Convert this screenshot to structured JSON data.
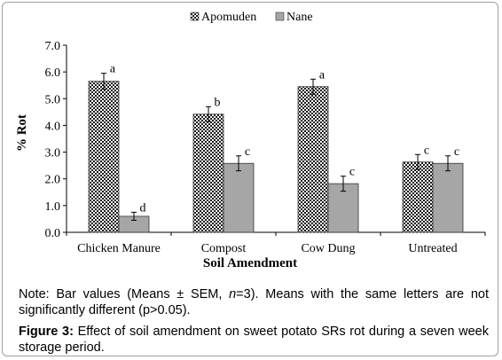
{
  "chart_data": {
    "type": "bar",
    "xlabel": "Soil Amendment",
    "ylabel": "% Rot",
    "ylim": [
      0,
      7
    ],
    "yticks": [
      "0.0",
      "1.0",
      "2.0",
      "3.0",
      "4.0",
      "5.0",
      "6.0",
      "7.0"
    ],
    "grid": false,
    "legend_position": "top-center",
    "categories": [
      "Chicken Manure",
      "Compost",
      "Cow Dung",
      "Untreated"
    ],
    "series": [
      {
        "name": "Apomuden",
        "values": [
          5.65,
          4.42,
          5.45,
          2.63
        ],
        "errors": [
          0.3,
          0.28,
          0.28,
          0.28
        ],
        "letters": [
          "a",
          "b",
          "a",
          "c"
        ],
        "pattern": "checkered",
        "color": "#1a1a1a"
      },
      {
        "name": "Nane",
        "values": [
          0.6,
          2.58,
          1.82,
          2.58
        ],
        "errors": [
          0.15,
          0.28,
          0.28,
          0.28
        ],
        "letters": [
          "d",
          "c",
          "c",
          "c"
        ],
        "pattern": "solid",
        "color": "#a6a6a6"
      }
    ]
  },
  "note": {
    "prefix": "Note: Bar values (Means ± SEM, ",
    "n_symbol": "n",
    "suffix": "=3). Means with the same letters are not significantly different (p>0.05)."
  },
  "caption": {
    "label": "Figure 3:",
    "text": " Effect of soil amendment on sweet potato SRs rot during a seven week storage period."
  }
}
